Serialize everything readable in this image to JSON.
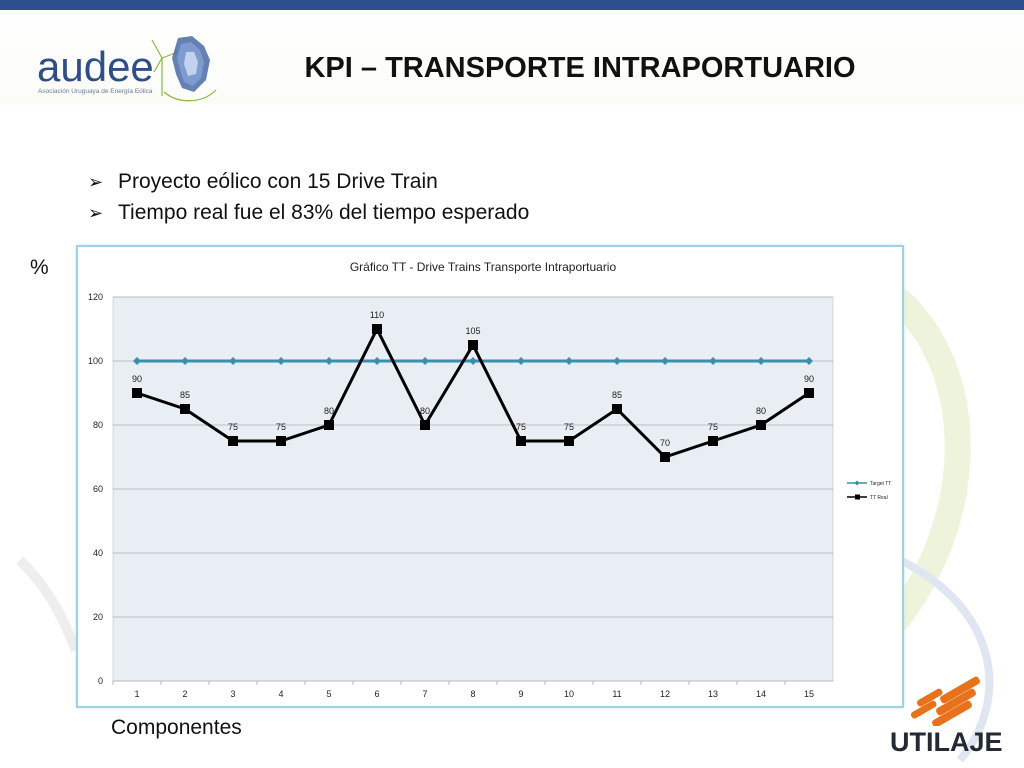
{
  "slide": {
    "title": "KPI – TRANSPORTE INTRAPORTUARIO",
    "bullets": [
      "Proyecto eólico con 15 Drive Train",
      "Tiempo real fue el 83% del tiempo esperado"
    ],
    "y_unit_label": "%",
    "x_caption": "Componentes",
    "bullet_icon": "arrow-bullet-icon"
  },
  "logos": {
    "audee_word": "audee",
    "audee_subtitle": "Asociación Uruguaya de Energía Eólica",
    "utilaje_word": "UTILAJE"
  },
  "colors": {
    "top_bar": "#2e4f8f",
    "target_series": "#3b8fad",
    "real_series": "#000000",
    "plot_bg": "#e8eef3",
    "utilaje_accent": "#e8711c"
  },
  "chart_data": {
    "type": "line",
    "title": "Gráfico TT - Drive Trains Transporte Intraportuario",
    "categories": [
      "1",
      "2",
      "3",
      "4",
      "5",
      "6",
      "7",
      "8",
      "9",
      "10",
      "11",
      "12",
      "13",
      "14",
      "15"
    ],
    "ylim": [
      0,
      120
    ],
    "yticks": [
      0,
      20,
      40,
      60,
      80,
      100,
      120
    ],
    "grid": true,
    "legend_position": "right",
    "series": [
      {
        "name": "Target TT",
        "values": [
          100,
          100,
          100,
          100,
          100,
          100,
          100,
          100,
          100,
          100,
          100,
          100,
          100,
          100,
          100
        ],
        "marker": "diamond",
        "data_labels": false
      },
      {
        "name": "TT Real",
        "values": [
          90,
          85,
          75,
          75,
          80,
          110,
          80,
          105,
          75,
          75,
          85,
          70,
          75,
          80,
          90
        ],
        "marker": "square",
        "data_labels": true
      }
    ]
  }
}
